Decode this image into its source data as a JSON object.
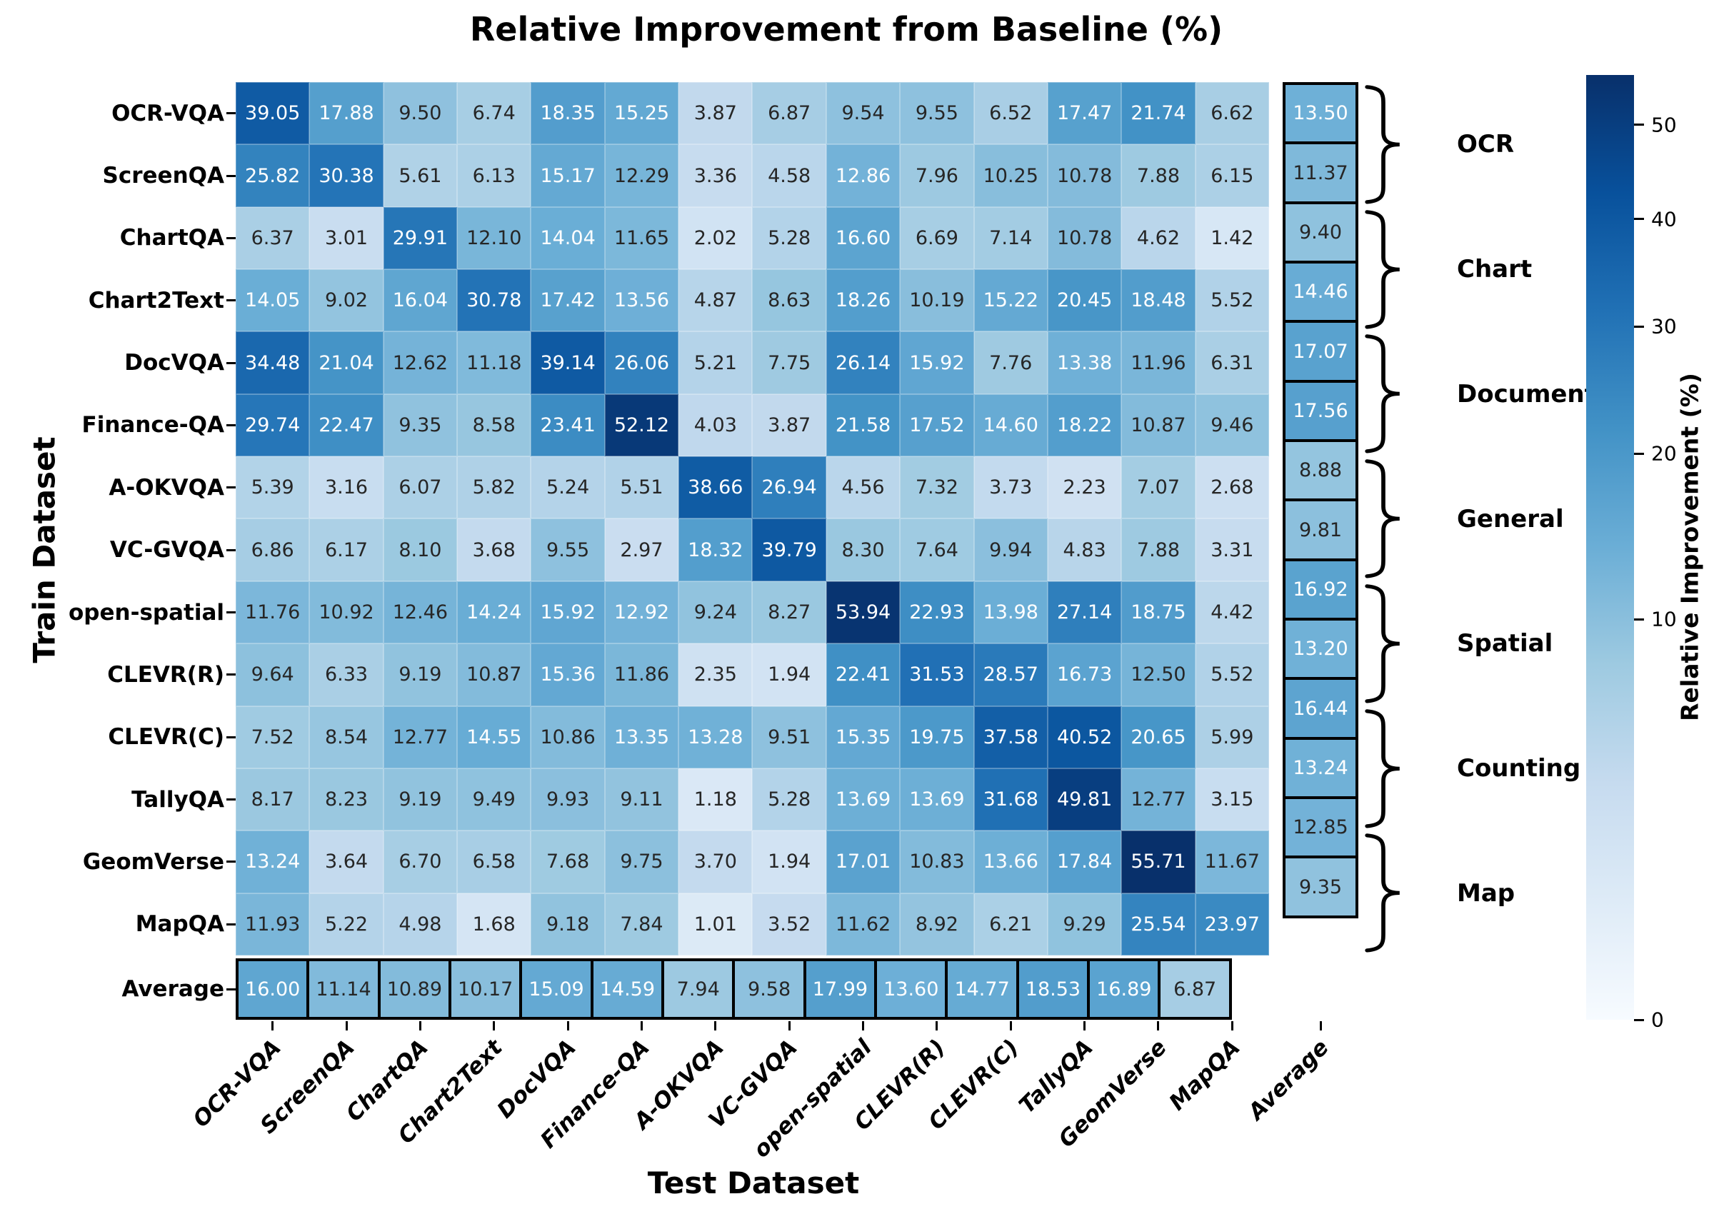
{
  "title": "Relative Improvement from Baseline (%)",
  "axes": {
    "x_title": "Test Dataset",
    "y_title": "Train Dataset"
  },
  "colorbar": {
    "label": "Relative Improvement (%)",
    "ticks": [
      "0",
      "10",
      "20",
      "30",
      "40",
      "50"
    ]
  },
  "row_groups": [
    {
      "label": "OCR"
    },
    {
      "label": "Chart"
    },
    {
      "label": "Document"
    },
    {
      "label": "General"
    },
    {
      "label": "Spatial"
    },
    {
      "label": "Counting"
    },
    {
      "label": "Map"
    }
  ],
  "chart_data": {
    "type": "heatmap",
    "title": "Relative Improvement from Baseline (%)",
    "xlabel": "Test Dataset",
    "ylabel": "Train Dataset",
    "colormap": "Blues",
    "color_norm": "sqrt",
    "vmin": 0,
    "vmax": 55.71,
    "x_categories": [
      "OCR-VQA",
      "ScreenQA",
      "ChartQA",
      "Chart2Text",
      "DocVQA",
      "Finance-QA",
      "A-OKVQA",
      "VC-GVQA",
      "open-spatial",
      "CLEVR(R)",
      "CLEVR(C)",
      "TallyQA",
      "GeomVerse",
      "MapQA",
      "Average"
    ],
    "y_categories": [
      "OCR-VQA",
      "ScreenQA",
      "ChartQA",
      "Chart2Text",
      "DocVQA",
      "Finance-QA",
      "A-OKVQA",
      "VC-GVQA",
      "open-spatial",
      "CLEVR(R)",
      "CLEVR(C)",
      "TallyQA",
      "GeomVerse",
      "MapQA",
      "Average"
    ],
    "rows": [
      {
        "train": "OCR-VQA",
        "values": [
          "39.05",
          "17.88",
          "9.50",
          "6.74",
          "18.35",
          "15.25",
          "3.87",
          "6.87",
          "9.54",
          "9.55",
          "6.52",
          "17.47",
          "21.74",
          "6.62"
        ],
        "average": "13.50"
      },
      {
        "train": "ScreenQA",
        "values": [
          "25.82",
          "30.38",
          "5.61",
          "6.13",
          "15.17",
          "12.29",
          "3.36",
          "4.58",
          "12.86",
          "7.96",
          "10.25",
          "10.78",
          "7.88",
          "6.15"
        ],
        "average": "11.37"
      },
      {
        "train": "ChartQA",
        "values": [
          "6.37",
          "3.01",
          "29.91",
          "12.10",
          "14.04",
          "11.65",
          "2.02",
          "5.28",
          "16.60",
          "6.69",
          "7.14",
          "10.78",
          "4.62",
          "1.42"
        ],
        "average": "9.40"
      },
      {
        "train": "Chart2Text",
        "values": [
          "14.05",
          "9.02",
          "16.04",
          "30.78",
          "17.42",
          "13.56",
          "4.87",
          "8.63",
          "18.26",
          "10.19",
          "15.22",
          "20.45",
          "18.48",
          "5.52"
        ],
        "average": "14.46"
      },
      {
        "train": "DocVQA",
        "values": [
          "34.48",
          "21.04",
          "12.62",
          "11.18",
          "39.14",
          "26.06",
          "5.21",
          "7.75",
          "26.14",
          "15.92",
          "7.76",
          "13.38",
          "11.96",
          "6.31"
        ],
        "average": "17.07"
      },
      {
        "train": "Finance-QA",
        "values": [
          "29.74",
          "22.47",
          "9.35",
          "8.58",
          "23.41",
          "52.12",
          "4.03",
          "3.87",
          "21.58",
          "17.52",
          "14.60",
          "18.22",
          "10.87",
          "9.46"
        ],
        "average": "17.56"
      },
      {
        "train": "A-OKVQA",
        "values": [
          "5.39",
          "3.16",
          "6.07",
          "5.82",
          "5.24",
          "5.51",
          "38.66",
          "26.94",
          "4.56",
          "7.32",
          "3.73",
          "2.23",
          "7.07",
          "2.68"
        ],
        "average": "8.88"
      },
      {
        "train": "VC-GVQA",
        "values": [
          "6.86",
          "6.17",
          "8.10",
          "3.68",
          "9.55",
          "2.97",
          "18.32",
          "39.79",
          "8.30",
          "7.64",
          "9.94",
          "4.83",
          "7.88",
          "3.31"
        ],
        "average": "9.81"
      },
      {
        "train": "open-spatial",
        "values": [
          "11.76",
          "10.92",
          "12.46",
          "14.24",
          "15.92",
          "12.92",
          "9.24",
          "8.27",
          "53.94",
          "22.93",
          "13.98",
          "27.14",
          "18.75",
          "4.42"
        ],
        "average": "16.92"
      },
      {
        "train": "CLEVR(R)",
        "values": [
          "9.64",
          "6.33",
          "9.19",
          "10.87",
          "15.36",
          "11.86",
          "2.35",
          "1.94",
          "22.41",
          "31.53",
          "28.57",
          "16.73",
          "12.50",
          "5.52"
        ],
        "average": "13.20"
      },
      {
        "train": "CLEVR(C)",
        "values": [
          "7.52",
          "8.54",
          "12.77",
          "14.55",
          "10.86",
          "13.35",
          "13.28",
          "9.51",
          "15.35",
          "19.75",
          "37.58",
          "40.52",
          "20.65",
          "5.99"
        ],
        "average": "16.44"
      },
      {
        "train": "TallyQA",
        "values": [
          "8.17",
          "8.23",
          "9.19",
          "9.49",
          "9.93",
          "9.11",
          "1.18",
          "5.28",
          "13.69",
          "13.69",
          "31.68",
          "49.81",
          "12.77",
          "3.15"
        ],
        "average": "13.24"
      },
      {
        "train": "GeomVerse",
        "values": [
          "13.24",
          "3.64",
          "6.70",
          "6.58",
          "7.68",
          "9.75",
          "3.70",
          "1.94",
          "17.01",
          "10.83",
          "13.66",
          "17.84",
          "55.71",
          "11.67"
        ],
        "average": "12.85"
      },
      {
        "train": "MapQA",
        "values": [
          "11.93",
          "5.22",
          "4.98",
          "1.68",
          "9.18",
          "7.84",
          "1.01",
          "3.52",
          "11.62",
          "8.92",
          "6.21",
          "9.29",
          "25.54",
          "23.97"
        ],
        "average": "9.35"
      }
    ],
    "column_averages": [
      "16.00",
      "11.14",
      "10.89",
      "10.17",
      "15.09",
      "14.59",
      "7.94",
      "9.58",
      "17.99",
      "13.60",
      "14.77",
      "18.53",
      "16.89",
      "6.87"
    ],
    "row_group_labels": [
      {
        "label": "OCR",
        "rows": [
          "OCR-VQA",
          "ScreenQA"
        ]
      },
      {
        "label": "Chart",
        "rows": [
          "ChartQA",
          "Chart2Text"
        ]
      },
      {
        "label": "Document",
        "rows": [
          "DocVQA",
          "Finance-QA"
        ]
      },
      {
        "label": "General",
        "rows": [
          "A-OKVQA",
          "VC-GVQA"
        ]
      },
      {
        "label": "Spatial",
        "rows": [
          "open-spatial",
          "CLEVR(R)"
        ]
      },
      {
        "label": "Counting",
        "rows": [
          "CLEVR(C)",
          "TallyQA"
        ]
      },
      {
        "label": "Map",
        "rows": [
          "GeomVerse",
          "MapQA"
        ]
      }
    ]
  }
}
